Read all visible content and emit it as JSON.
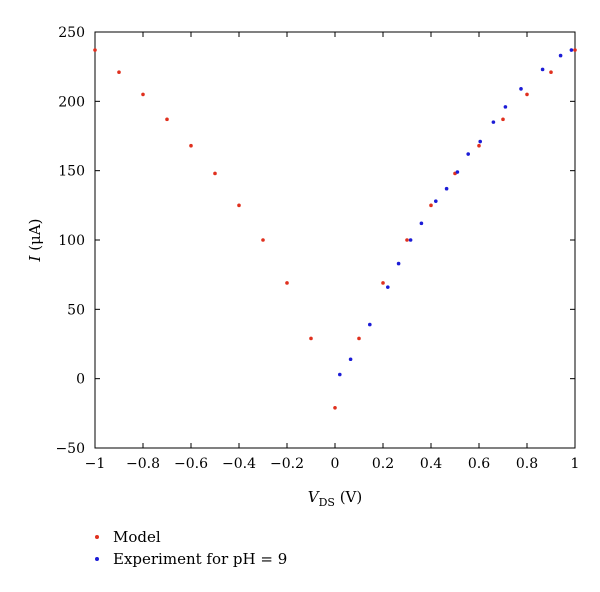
{
  "chart_data": {
    "type": "scatter",
    "xlabel": {
      "main": "V",
      "sub": "DS",
      "unit": " (V)"
    },
    "ylabel": {
      "main": "I",
      "unit": " (μA)"
    },
    "xlim": [
      -1,
      1
    ],
    "ylim": [
      -50,
      250
    ],
    "xticks": [
      -1,
      -0.8,
      -0.6,
      -0.4,
      -0.2,
      0,
      0.2,
      0.4,
      0.6,
      0.8,
      1
    ],
    "xtick_labels": [
      "−1",
      "−0.8",
      "−0.6",
      "−0.4",
      "−0.2",
      "0",
      "0.2",
      "0.4",
      "0.6",
      "0.8",
      "1"
    ],
    "yticks": [
      -50,
      0,
      50,
      100,
      150,
      200,
      250
    ],
    "ytick_labels": [
      "−50",
      "0",
      "50",
      "100",
      "150",
      "200",
      "250"
    ],
    "grid": false,
    "legend_position": "bottom-left",
    "series": [
      {
        "name": "Model",
        "color": "#e0301e",
        "points": [
          [
            -1,
            237
          ],
          [
            -0.9,
            221
          ],
          [
            -0.8,
            205
          ],
          [
            -0.7,
            187
          ],
          [
            -0.6,
            168
          ],
          [
            -0.5,
            148
          ],
          [
            -0.4,
            125
          ],
          [
            -0.3,
            100
          ],
          [
            -0.2,
            69
          ],
          [
            -0.1,
            29
          ],
          [
            0,
            -21
          ],
          [
            0.1,
            29
          ],
          [
            0.2,
            69
          ],
          [
            0.3,
            100
          ],
          [
            0.4,
            125
          ],
          [
            0.5,
            148
          ],
          [
            0.6,
            168
          ],
          [
            0.7,
            187
          ],
          [
            0.8,
            205
          ],
          [
            0.9,
            221
          ],
          [
            1,
            237
          ]
        ]
      },
      {
        "name": "Experiment for pH = 9",
        "color": "#1c1cd6",
        "points": [
          [
            0.02,
            3
          ],
          [
            0.065,
            14
          ],
          [
            0.145,
            39
          ],
          [
            0.22,
            66
          ],
          [
            0.265,
            83
          ],
          [
            0.315,
            100
          ],
          [
            0.36,
            112
          ],
          [
            0.42,
            128
          ],
          [
            0.465,
            137
          ],
          [
            0.51,
            149
          ],
          [
            0.555,
            162
          ],
          [
            0.605,
            171
          ],
          [
            0.66,
            185
          ],
          [
            0.71,
            196
          ],
          [
            0.775,
            209
          ],
          [
            0.865,
            223
          ],
          [
            0.94,
            233
          ],
          [
            0.985,
            237
          ]
        ]
      }
    ]
  }
}
